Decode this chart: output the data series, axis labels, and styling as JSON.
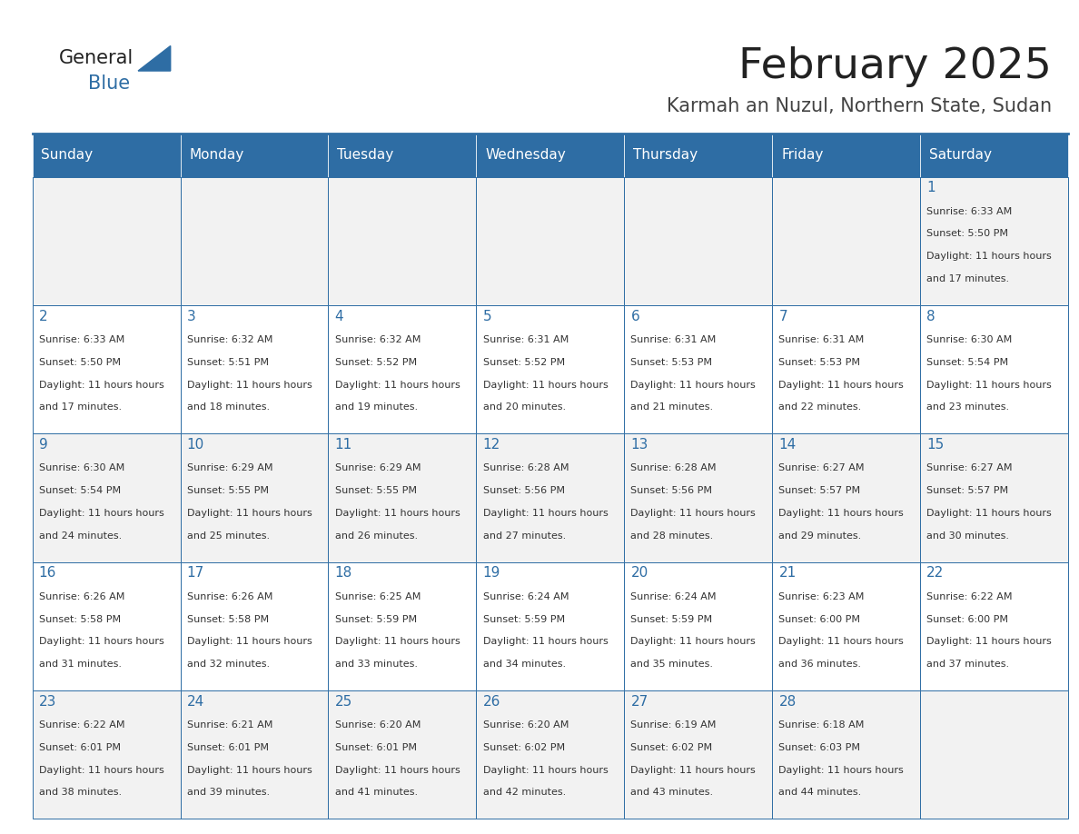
{
  "title": "February 2025",
  "subtitle": "Karmah an Nuzul, Northern State, Sudan",
  "days_of_week": [
    "Sunday",
    "Monday",
    "Tuesday",
    "Wednesday",
    "Thursday",
    "Friday",
    "Saturday"
  ],
  "header_bg": "#2E6DA4",
  "header_text": "#FFFFFF",
  "cell_bg_odd": "#F2F2F2",
  "cell_bg_even": "#FFFFFF",
  "cell_border": "#2E6DA4",
  "day_num_color": "#2E6DA4",
  "info_color": "#333333",
  "title_color": "#222222",
  "subtitle_color": "#444444",
  "logo_general_color": "#222222",
  "logo_blue_color": "#2E6DA4",
  "weeks": [
    [
      {
        "day": null,
        "sunrise": null,
        "sunset": null,
        "daylight": null
      },
      {
        "day": null,
        "sunrise": null,
        "sunset": null,
        "daylight": null
      },
      {
        "day": null,
        "sunrise": null,
        "sunset": null,
        "daylight": null
      },
      {
        "day": null,
        "sunrise": null,
        "sunset": null,
        "daylight": null
      },
      {
        "day": null,
        "sunrise": null,
        "sunset": null,
        "daylight": null
      },
      {
        "day": null,
        "sunrise": null,
        "sunset": null,
        "daylight": null
      },
      {
        "day": 1,
        "sunrise": "6:33 AM",
        "sunset": "5:50 PM",
        "daylight": "11 hours and 17 minutes."
      }
    ],
    [
      {
        "day": 2,
        "sunrise": "6:33 AM",
        "sunset": "5:50 PM",
        "daylight": "11 hours and 17 minutes."
      },
      {
        "day": 3,
        "sunrise": "6:32 AM",
        "sunset": "5:51 PM",
        "daylight": "11 hours and 18 minutes."
      },
      {
        "day": 4,
        "sunrise": "6:32 AM",
        "sunset": "5:52 PM",
        "daylight": "11 hours and 19 minutes."
      },
      {
        "day": 5,
        "sunrise": "6:31 AM",
        "sunset": "5:52 PM",
        "daylight": "11 hours and 20 minutes."
      },
      {
        "day": 6,
        "sunrise": "6:31 AM",
        "sunset": "5:53 PM",
        "daylight": "11 hours and 21 minutes."
      },
      {
        "day": 7,
        "sunrise": "6:31 AM",
        "sunset": "5:53 PM",
        "daylight": "11 hours and 22 minutes."
      },
      {
        "day": 8,
        "sunrise": "6:30 AM",
        "sunset": "5:54 PM",
        "daylight": "11 hours and 23 minutes."
      }
    ],
    [
      {
        "day": 9,
        "sunrise": "6:30 AM",
        "sunset": "5:54 PM",
        "daylight": "11 hours and 24 minutes."
      },
      {
        "day": 10,
        "sunrise": "6:29 AM",
        "sunset": "5:55 PM",
        "daylight": "11 hours and 25 minutes."
      },
      {
        "day": 11,
        "sunrise": "6:29 AM",
        "sunset": "5:55 PM",
        "daylight": "11 hours and 26 minutes."
      },
      {
        "day": 12,
        "sunrise": "6:28 AM",
        "sunset": "5:56 PM",
        "daylight": "11 hours and 27 minutes."
      },
      {
        "day": 13,
        "sunrise": "6:28 AM",
        "sunset": "5:56 PM",
        "daylight": "11 hours and 28 minutes."
      },
      {
        "day": 14,
        "sunrise": "6:27 AM",
        "sunset": "5:57 PM",
        "daylight": "11 hours and 29 minutes."
      },
      {
        "day": 15,
        "sunrise": "6:27 AM",
        "sunset": "5:57 PM",
        "daylight": "11 hours and 30 minutes."
      }
    ],
    [
      {
        "day": 16,
        "sunrise": "6:26 AM",
        "sunset": "5:58 PM",
        "daylight": "11 hours and 31 minutes."
      },
      {
        "day": 17,
        "sunrise": "6:26 AM",
        "sunset": "5:58 PM",
        "daylight": "11 hours and 32 minutes."
      },
      {
        "day": 18,
        "sunrise": "6:25 AM",
        "sunset": "5:59 PM",
        "daylight": "11 hours and 33 minutes."
      },
      {
        "day": 19,
        "sunrise": "6:24 AM",
        "sunset": "5:59 PM",
        "daylight": "11 hours and 34 minutes."
      },
      {
        "day": 20,
        "sunrise": "6:24 AM",
        "sunset": "5:59 PM",
        "daylight": "11 hours and 35 minutes."
      },
      {
        "day": 21,
        "sunrise": "6:23 AM",
        "sunset": "6:00 PM",
        "daylight": "11 hours and 36 minutes."
      },
      {
        "day": 22,
        "sunrise": "6:22 AM",
        "sunset": "6:00 PM",
        "daylight": "11 hours and 37 minutes."
      }
    ],
    [
      {
        "day": 23,
        "sunrise": "6:22 AM",
        "sunset": "6:01 PM",
        "daylight": "11 hours and 38 minutes."
      },
      {
        "day": 24,
        "sunrise": "6:21 AM",
        "sunset": "6:01 PM",
        "daylight": "11 hours and 39 minutes."
      },
      {
        "day": 25,
        "sunrise": "6:20 AM",
        "sunset": "6:01 PM",
        "daylight": "11 hours and 41 minutes."
      },
      {
        "day": 26,
        "sunrise": "6:20 AM",
        "sunset": "6:02 PM",
        "daylight": "11 hours and 42 minutes."
      },
      {
        "day": 27,
        "sunrise": "6:19 AM",
        "sunset": "6:02 PM",
        "daylight": "11 hours and 43 minutes."
      },
      {
        "day": 28,
        "sunrise": "6:18 AM",
        "sunset": "6:03 PM",
        "daylight": "11 hours and 44 minutes."
      },
      {
        "day": null,
        "sunrise": null,
        "sunset": null,
        "daylight": null
      }
    ]
  ]
}
